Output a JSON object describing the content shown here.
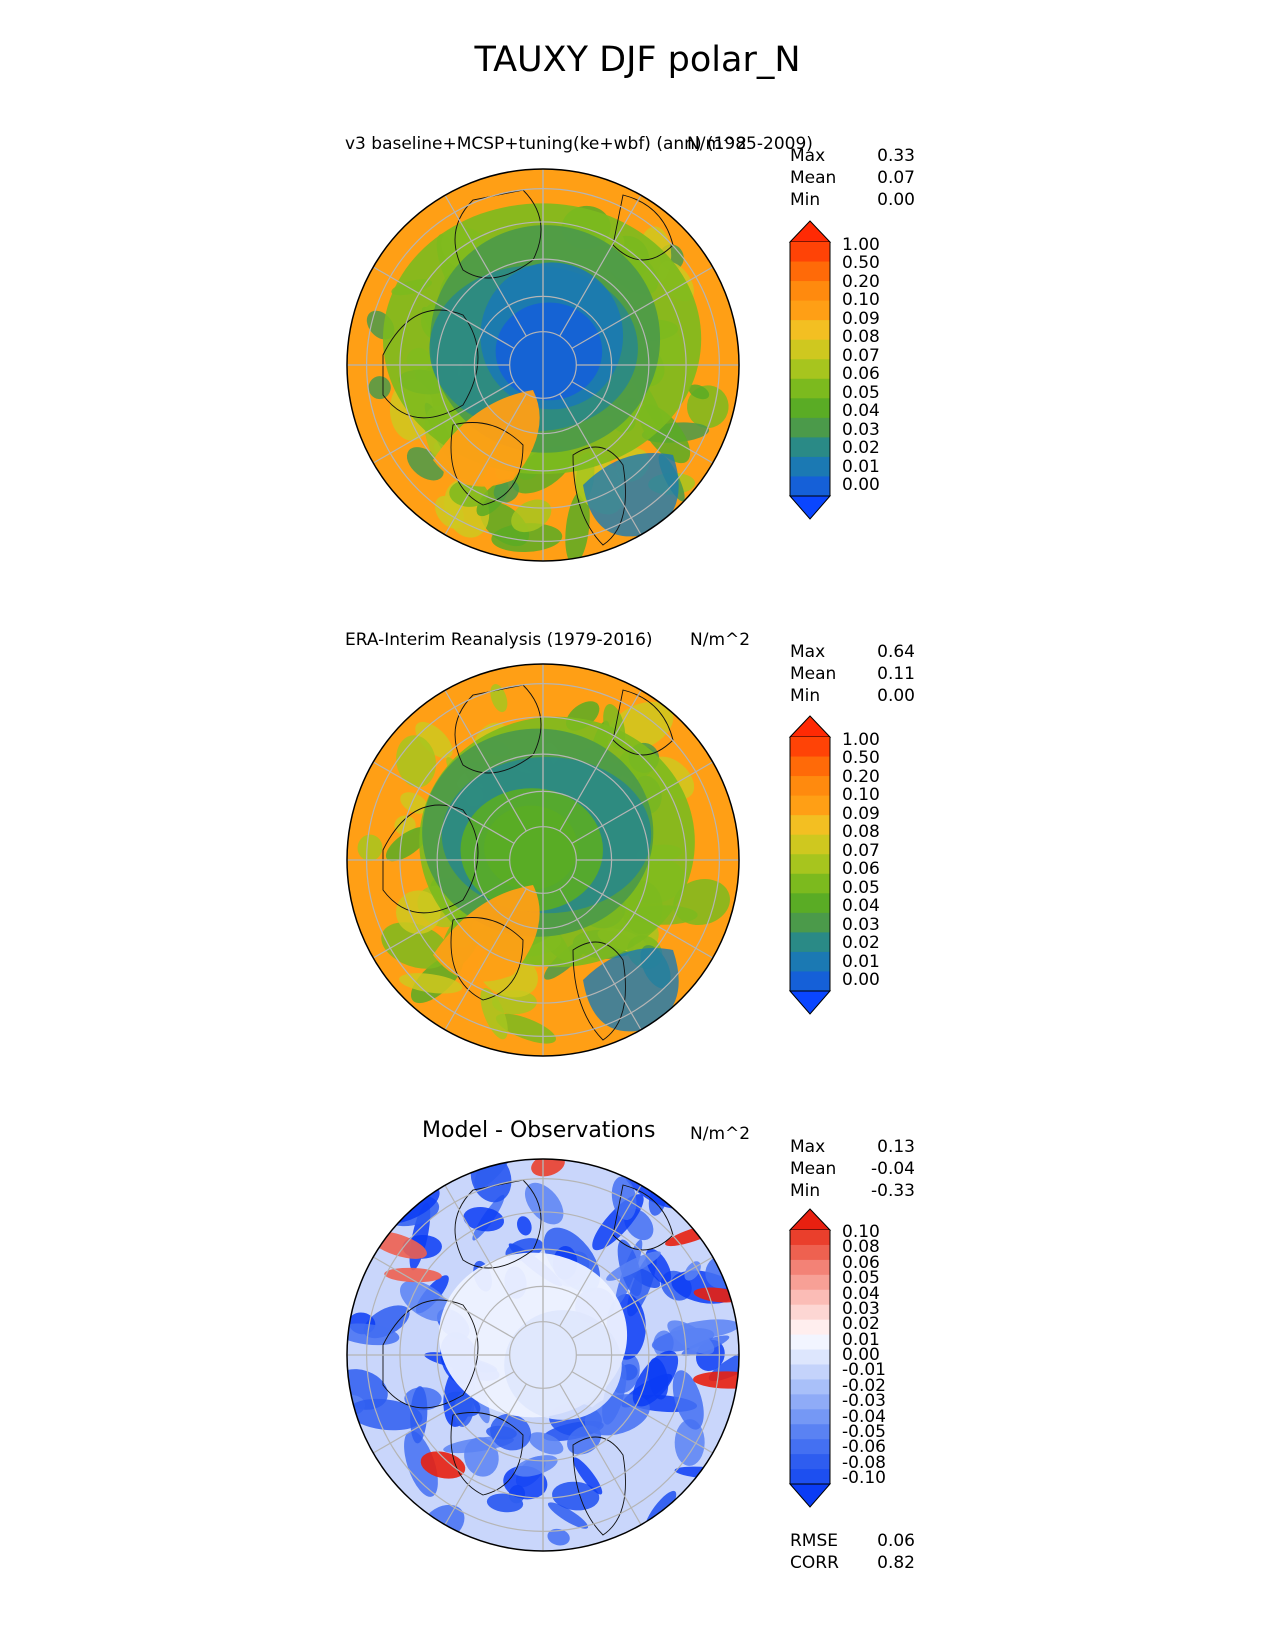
{
  "figure": {
    "title": "TAUXY DJF polar_N"
  },
  "chart_data": [
    {
      "type": "heatmap",
      "projection": "north polar stereographic",
      "title": "v3 baseline+MCSP+tuning(ke+wbf) (ann) (1985-2009)",
      "units": "N/m^2",
      "stats": [
        {
          "label": "Max",
          "value": "0.33"
        },
        {
          "label": "Mean",
          "value": "0.07"
        },
        {
          "label": "Min",
          "value": "0.00"
        }
      ],
      "colorbar": {
        "ticks": [
          "1.00",
          "0.50",
          "0.20",
          "0.10",
          "0.09",
          "0.08",
          "0.07",
          "0.06",
          "0.05",
          "0.04",
          "0.03",
          "0.02",
          "0.01",
          "0.00"
        ],
        "colors": [
          "#0a46ff",
          "#1560d8",
          "#1b79b3",
          "#2a8a86",
          "#4b9a4a",
          "#5aac25",
          "#7cba1e",
          "#a7c51e",
          "#cfc81f",
          "#f3bf22",
          "#ff9f15",
          "#ff8a0e",
          "#ff6a08",
          "#ff4306",
          "#ff2a04"
        ]
      },
      "palette": "blue-green-yellow-orange-red"
    },
    {
      "type": "heatmap",
      "projection": "north polar stereographic",
      "title": "ERA-Interim Reanalysis (1979-2016)",
      "units": "N/m^2",
      "stats": [
        {
          "label": "Max",
          "value": "0.64"
        },
        {
          "label": "Mean",
          "value": "0.11"
        },
        {
          "label": "Min",
          "value": "0.00"
        }
      ],
      "colorbar": {
        "ticks": [
          "1.00",
          "0.50",
          "0.20",
          "0.10",
          "0.09",
          "0.08",
          "0.07",
          "0.06",
          "0.05",
          "0.04",
          "0.03",
          "0.02",
          "0.01",
          "0.00"
        ],
        "colors": [
          "#0a46ff",
          "#1560d8",
          "#1b79b3",
          "#2a8a86",
          "#4b9a4a",
          "#5aac25",
          "#7cba1e",
          "#a7c51e",
          "#cfc81f",
          "#f3bf22",
          "#ff9f15",
          "#ff8a0e",
          "#ff6a08",
          "#ff4306",
          "#ff2a04"
        ]
      },
      "palette": "blue-green-yellow-orange-red"
    },
    {
      "type": "heatmap",
      "projection": "north polar stereographic",
      "title": "Model - Observations",
      "units": "N/m^2",
      "stats": [
        {
          "label": "Max",
          "value": "0.13"
        },
        {
          "label": "Mean",
          "value": "-0.04"
        },
        {
          "label": "Min",
          "value": "-0.33"
        }
      ],
      "colorbar": {
        "ticks": [
          "0.10",
          "0.08",
          "0.06",
          "0.05",
          "0.04",
          "0.03",
          "0.02",
          "0.01",
          "0.00",
          "-0.01",
          "-0.02",
          "-0.03",
          "-0.04",
          "-0.05",
          "-0.06",
          "-0.08",
          "-0.10"
        ],
        "colors": [
          "#0a3cf5",
          "#1d4ff0",
          "#2e5df0",
          "#4470f2",
          "#5a82f3",
          "#7598f5",
          "#8fabf7",
          "#a9c0f9",
          "#c4d3fb",
          "#dde6fd",
          "#f2f5ff",
          "#ffeeee",
          "#fdd6d3",
          "#fbbcb6",
          "#f7a096",
          "#f38276",
          "#ee6150",
          "#ea3f2c",
          "#e82010"
        ]
      },
      "footer_stats": [
        {
          "label": "RMSE",
          "value": "0.06"
        },
        {
          "label": "CORR",
          "value": "0.82"
        }
      ]
    }
  ]
}
